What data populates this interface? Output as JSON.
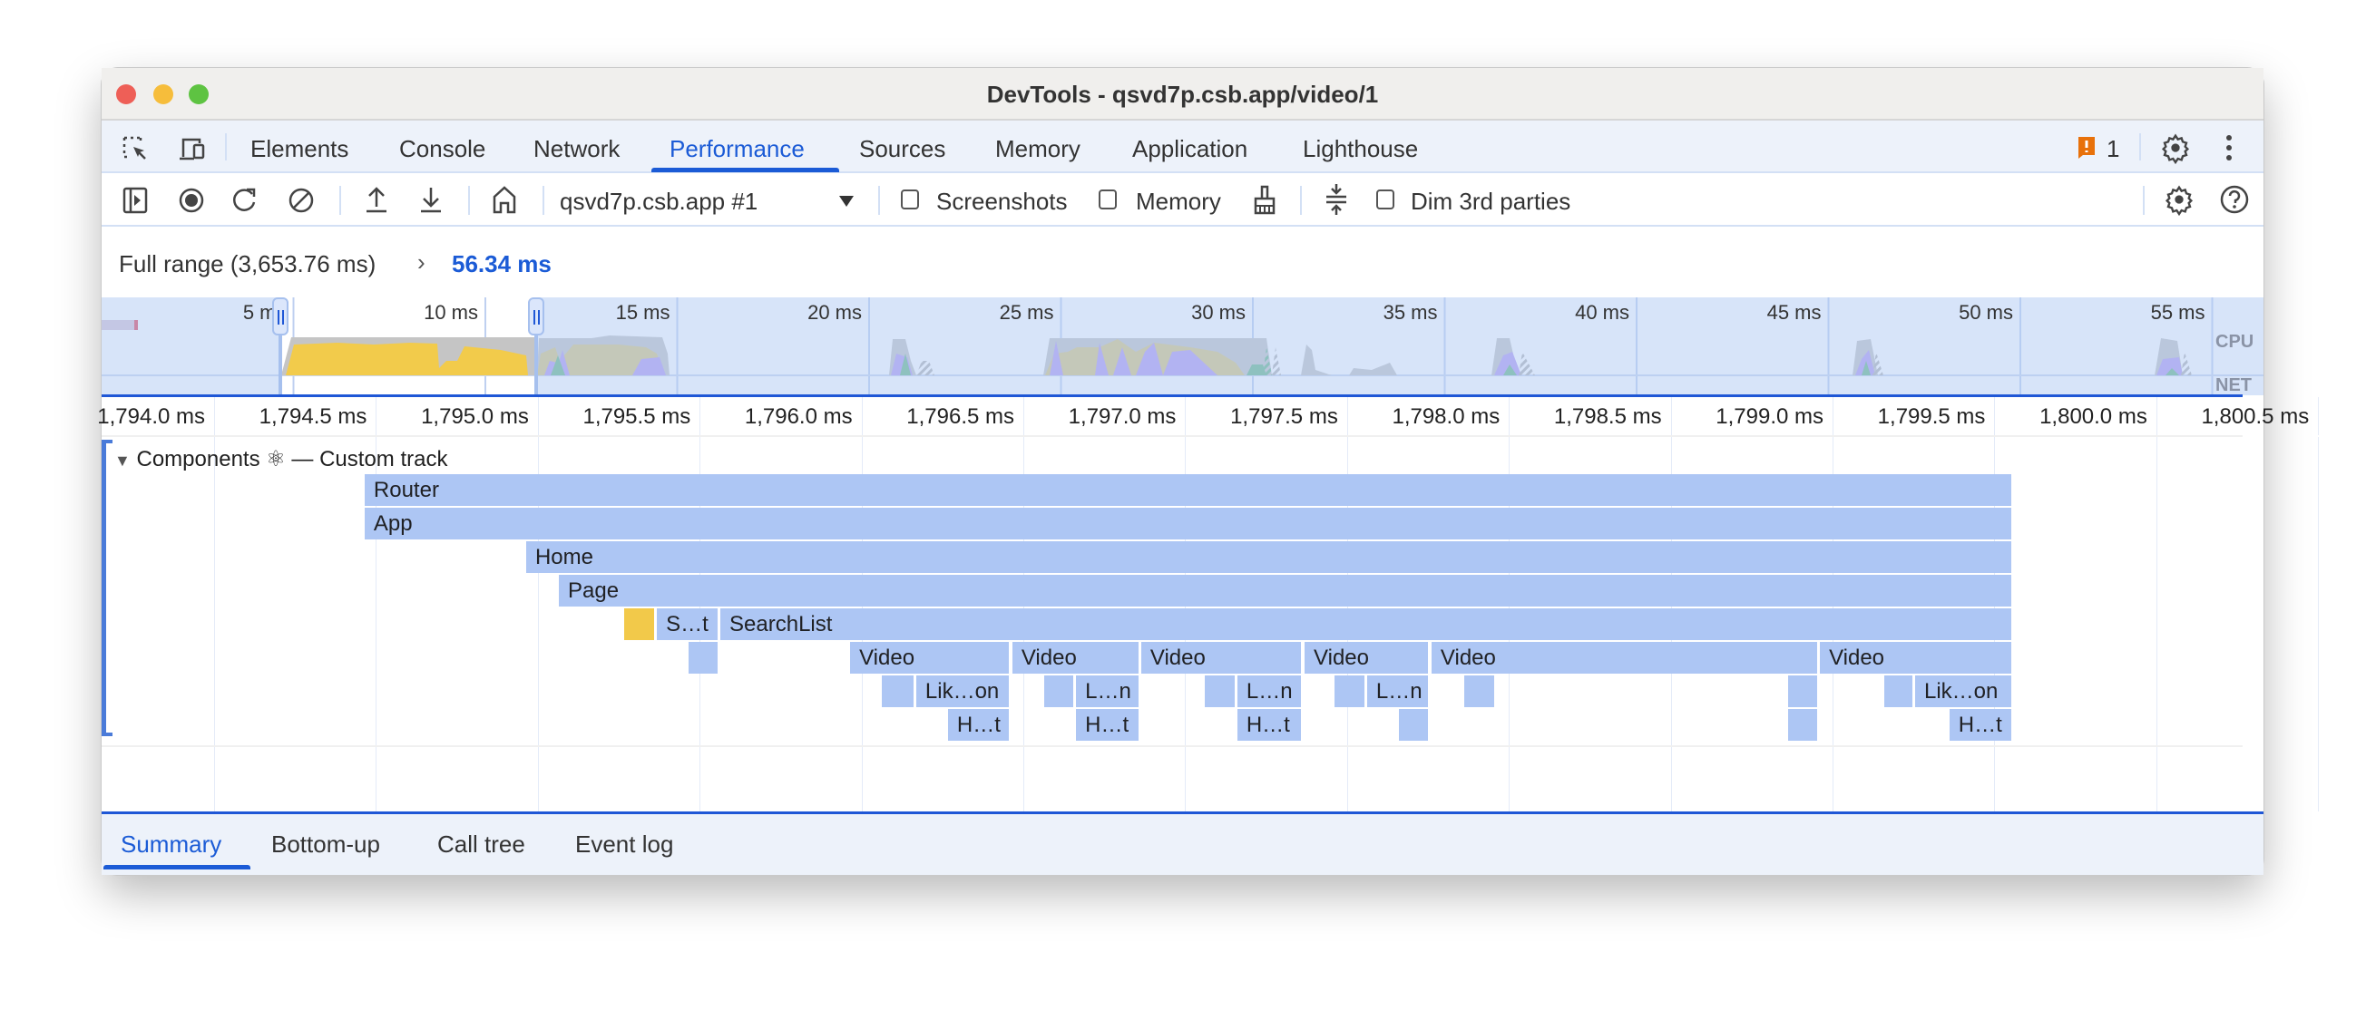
{
  "window": {
    "title": "DevTools - qsvd7p.csb.app/video/1"
  },
  "main_tabs": [
    {
      "label": "Elements",
      "active": false
    },
    {
      "label": "Console",
      "active": false
    },
    {
      "label": "Network",
      "active": false
    },
    {
      "label": "Performance",
      "active": true
    },
    {
      "label": "Sources",
      "active": false
    },
    {
      "label": "Memory",
      "active": false
    },
    {
      "label": "Application",
      "active": false
    },
    {
      "label": "Lighthouse",
      "active": false
    }
  ],
  "issues": {
    "count": "1",
    "icon": "issue-flag-icon",
    "color": "#e8710a"
  },
  "toolbar": {
    "target_select": "qsvd7p.csb.app #1",
    "screenshots_label": "Screenshots",
    "screenshots_checked": false,
    "memory_label": "Memory",
    "memory_checked": false,
    "dim_label": "Dim 3rd parties",
    "dim_checked": false
  },
  "range": {
    "full_range": "Full range (3,653.76 ms)",
    "separator": "›",
    "selected": "56.34 ms"
  },
  "overview": {
    "ticks": [
      "5 ms",
      "10 ms",
      "15 ms",
      "20 ms",
      "25 ms",
      "30 ms",
      "35 ms",
      "40 ms",
      "45 ms",
      "50 ms",
      "55 ms"
    ],
    "cpu_label": "CPU",
    "net_label": "NET",
    "selection_ms": [
      4.65,
      11.3
    ]
  },
  "ruler": {
    "ticks": [
      "1,794.0 ms",
      "1,794.5 ms",
      "1,795.0 ms",
      "1,795.5 ms",
      "1,796.0 ms",
      "1,796.5 ms",
      "1,797.0 ms",
      "1,797.5 ms",
      "1,798.0 ms",
      "1,798.5 ms",
      "1,799.0 ms",
      "1,799.5 ms",
      "1,800.0 ms",
      "1,800.5 ms"
    ]
  },
  "track": {
    "title": "Components ⚛ — Custom track",
    "entries": [
      {
        "label": "Router",
        "row": 0,
        "start": 1794.465,
        "end": 1799.555
      },
      {
        "label": "App",
        "row": 1,
        "start": 1794.465,
        "end": 1799.555
      },
      {
        "label": "Home",
        "row": 2,
        "start": 1794.964,
        "end": 1799.555
      },
      {
        "label": "Page",
        "row": 3,
        "start": 1795.065,
        "end": 1799.555
      },
      {
        "label": "",
        "row": 4,
        "start": 1795.267,
        "end": 1795.362,
        "color": "#f2c94a"
      },
      {
        "label": "S…t",
        "row": 4,
        "start": 1795.368,
        "end": 1795.558
      },
      {
        "label": "SearchList",
        "row": 4,
        "start": 1795.564,
        "end": 1799.555
      },
      {
        "label": "",
        "row": 5,
        "start": 1795.466,
        "end": 1795.558
      },
      {
        "label": "Video",
        "row": 5,
        "start": 1795.965,
        "end": 1796.458
      },
      {
        "label": "Video",
        "row": 5,
        "start": 1796.466,
        "end": 1796.859
      },
      {
        "label": "Video",
        "row": 5,
        "start": 1796.864,
        "end": 1797.36
      },
      {
        "label": "Video",
        "row": 5,
        "start": 1797.369,
        "end": 1797.753
      },
      {
        "label": "Video",
        "row": 5,
        "start": 1797.761,
        "end": 1798.955
      },
      {
        "label": "Video",
        "row": 5,
        "start": 1798.961,
        "end": 1799.555
      },
      {
        "label": "",
        "row": 6,
        "start": 1796.063,
        "end": 1796.164
      },
      {
        "label": "Lik…on",
        "row": 6,
        "start": 1796.169,
        "end": 1796.458
      },
      {
        "label": "",
        "row": 6,
        "start": 1796.564,
        "end": 1796.657
      },
      {
        "label": "L…n",
        "row": 6,
        "start": 1796.663,
        "end": 1796.859
      },
      {
        "label": "",
        "row": 6,
        "start": 1797.061,
        "end": 1797.156
      },
      {
        "label": "L…n",
        "row": 6,
        "start": 1797.161,
        "end": 1797.36
      },
      {
        "label": "",
        "row": 6,
        "start": 1797.461,
        "end": 1797.557
      },
      {
        "label": "L…n",
        "row": 6,
        "start": 1797.562,
        "end": 1797.753
      },
      {
        "label": "",
        "row": 6,
        "start": 1797.862,
        "end": 1797.957
      },
      {
        "label": "",
        "row": 6,
        "start": 1798.863,
        "end": 1798.955
      },
      {
        "label": "",
        "row": 6,
        "start": 1799.16,
        "end": 1799.249
      },
      {
        "label": "Lik…on",
        "row": 6,
        "start": 1799.255,
        "end": 1799.555
      },
      {
        "label": "H…t",
        "row": 7,
        "start": 1796.267,
        "end": 1796.458
      },
      {
        "label": "H…t",
        "row": 7,
        "start": 1796.663,
        "end": 1796.859
      },
      {
        "label": "H…t",
        "row": 7,
        "start": 1797.161,
        "end": 1797.36
      },
      {
        "label": "",
        "row": 7,
        "start": 1797.66,
        "end": 1797.753
      },
      {
        "label": "",
        "row": 7,
        "start": 1798.863,
        "end": 1798.955
      },
      {
        "label": "H…t",
        "row": 7,
        "start": 1799.361,
        "end": 1799.555
      }
    ]
  },
  "bottom_tabs": [
    {
      "label": "Summary",
      "active": true
    },
    {
      "label": "Bottom-up",
      "active": false
    },
    {
      "label": "Call tree",
      "active": false
    },
    {
      "label": "Event log",
      "active": false
    }
  ],
  "colors": {
    "accent": "#1b5bd6",
    "entry": "#adc6f4",
    "highlight": "#f2c94a"
  }
}
